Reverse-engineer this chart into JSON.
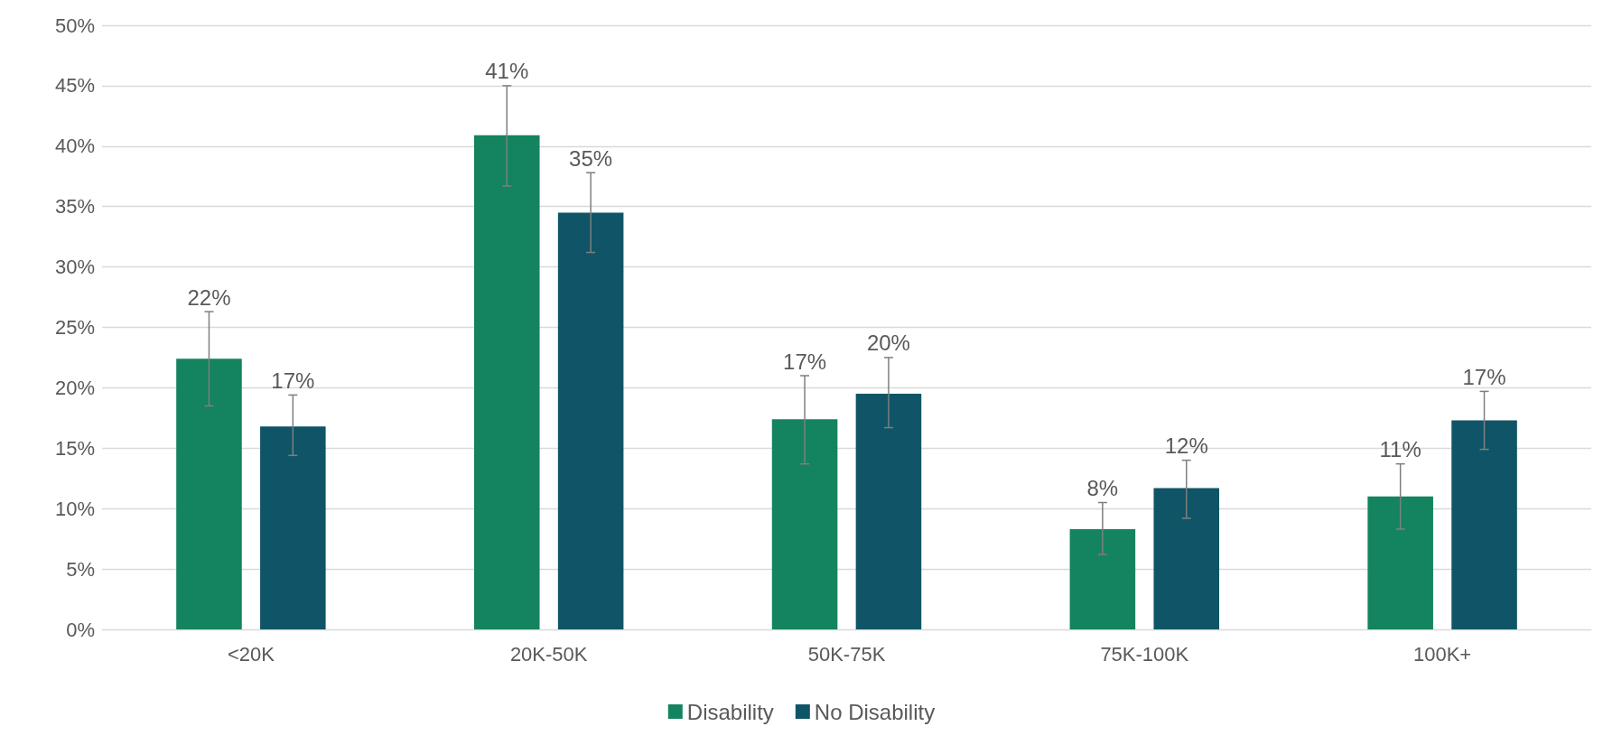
{
  "chart_data": {
    "type": "bar",
    "categories": [
      "<20K",
      "20K-50K",
      "50K-75K",
      "75K-100K",
      "100K+"
    ],
    "series": [
      {
        "name": "Disability",
        "color": "#148360",
        "values": [
          22.4,
          40.9,
          17.4,
          8.3,
          11.0
        ],
        "errors": [
          [
            18.5,
            26.3
          ],
          [
            36.7,
            45.0
          ],
          [
            13.7,
            21.0
          ],
          [
            6.2,
            10.5
          ],
          [
            8.3,
            13.7
          ]
        ],
        "value_labels": [
          "22%",
          "41%",
          "17%",
          "8%",
          "11%"
        ]
      },
      {
        "name": "No Disability",
        "color": "#0f5567",
        "values": [
          16.8,
          34.5,
          19.5,
          11.7,
          17.3
        ],
        "errors": [
          [
            14.4,
            19.4
          ],
          [
            31.2,
            37.8
          ],
          [
            16.7,
            22.5
          ],
          [
            9.2,
            14.0
          ],
          [
            14.9,
            19.7
          ]
        ],
        "value_labels": [
          "17%",
          "35%",
          "20%",
          "12%",
          "17%"
        ]
      }
    ],
    "ylim": [
      0,
      50
    ],
    "yticks": [
      {
        "value": 0,
        "label": "0%"
      },
      {
        "value": 5,
        "label": "5%"
      },
      {
        "value": 10,
        "label": "10%"
      },
      {
        "value": 15,
        "label": "15%"
      },
      {
        "value": 20,
        "label": "20%"
      },
      {
        "value": 25,
        "label": "25%"
      },
      {
        "value": 30,
        "label": "30%"
      },
      {
        "value": 35,
        "label": "35%"
      },
      {
        "value": 40,
        "label": "40%"
      },
      {
        "value": 45,
        "label": "45%"
      },
      {
        "value": 50,
        "label": "50%"
      }
    ],
    "grid": "y",
    "legend": "bottom"
  }
}
